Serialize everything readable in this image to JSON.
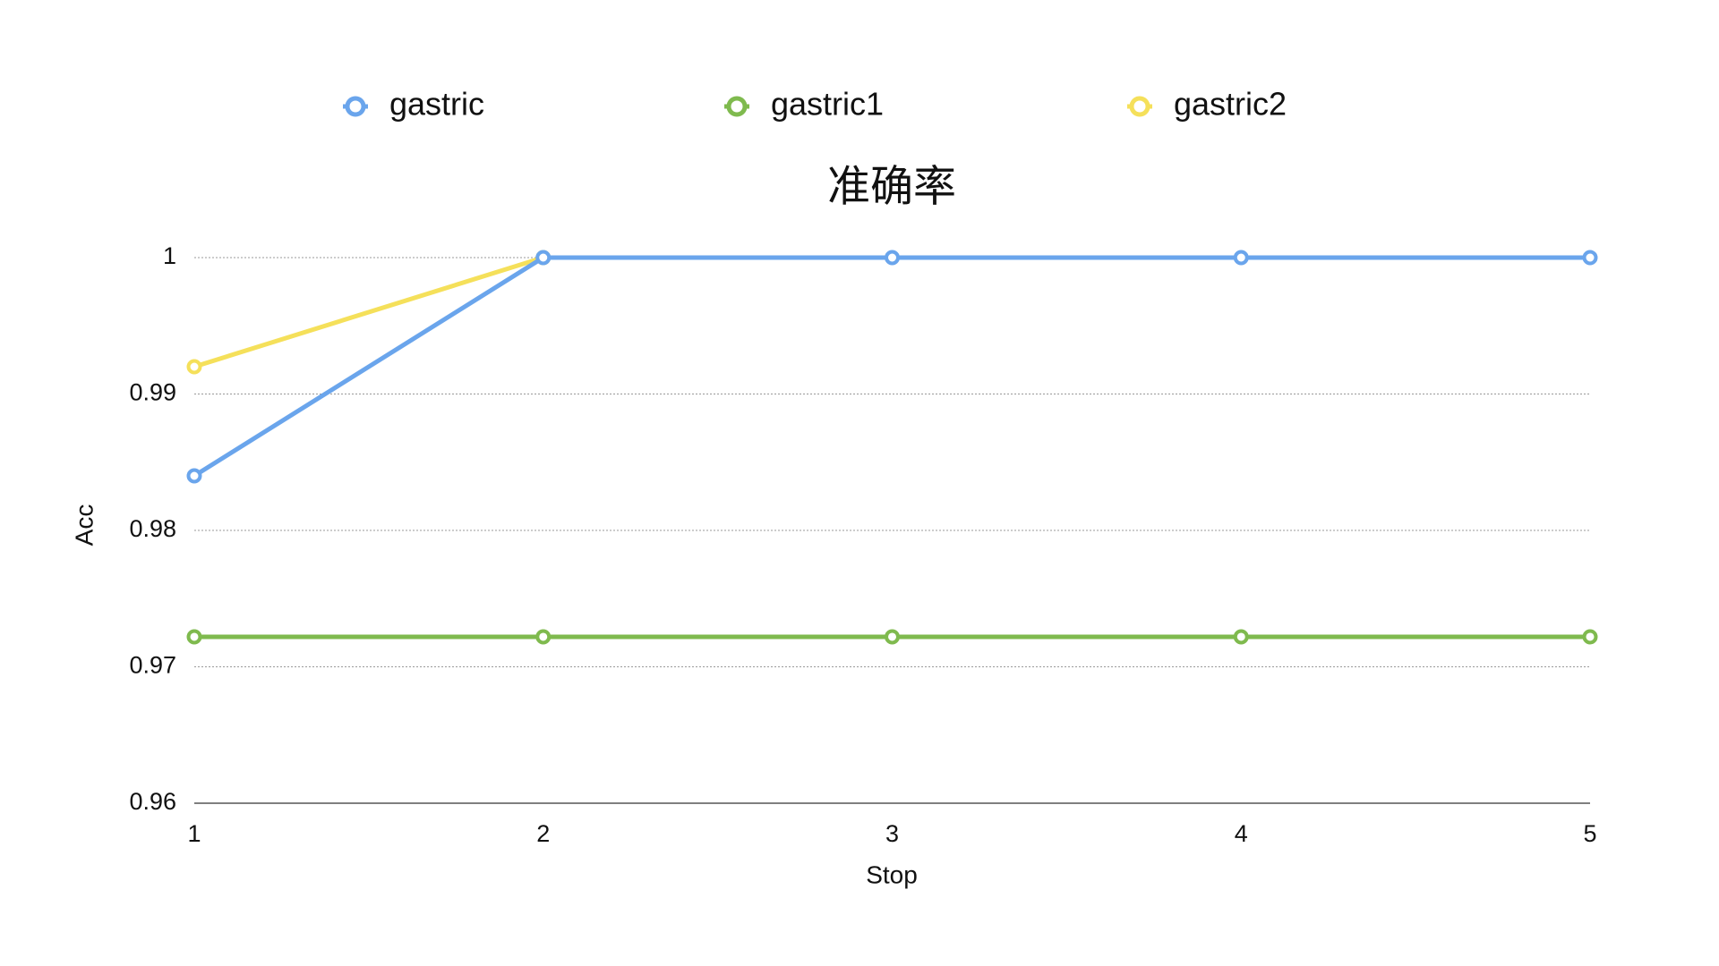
{
  "chart_data": {
    "type": "line",
    "title": "准确率",
    "x_label": "Stop",
    "y_label": "Acc",
    "x": [
      1,
      2,
      3,
      4,
      5
    ],
    "series": [
      {
        "name": "gastric",
        "color": "#6aa5ec",
        "values": [
          0.984,
          1,
          1,
          1,
          1
        ]
      },
      {
        "name": "gastric1",
        "color": "#7fba4e",
        "values": [
          0.9722,
          0.9722,
          0.9722,
          0.9722,
          0.9722
        ]
      },
      {
        "name": "gastric2",
        "color": "#f5e05a",
        "values": [
          0.992,
          1,
          null,
          null,
          null
        ]
      }
    ],
    "xlim": [
      1,
      5
    ],
    "xticks": [
      1,
      2,
      3,
      4,
      5
    ],
    "ylim": [
      0.96,
      1
    ],
    "yticks": [
      0.96,
      0.97,
      0.98,
      0.99,
      1
    ],
    "grid": true,
    "legend": "top"
  }
}
